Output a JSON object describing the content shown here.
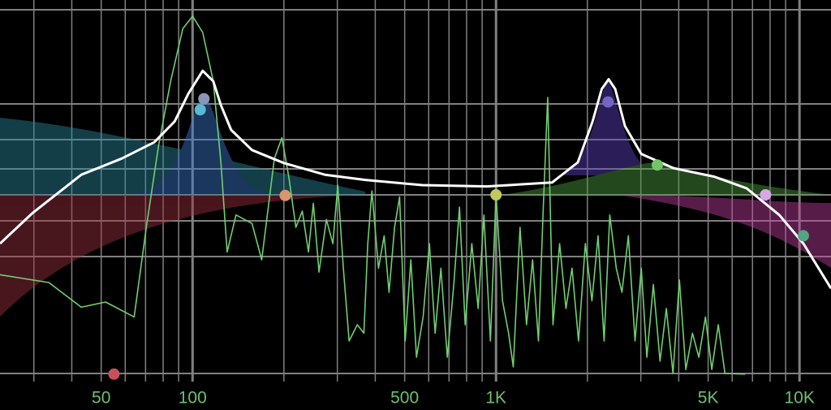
{
  "chart_data": {
    "type": "line",
    "xscale": "log",
    "background": "#000000",
    "xlim": [
      23.2,
      12700
    ],
    "ylim": [
      -30,
      30
    ],
    "xticks": [
      50,
      100,
      500,
      {
        "value": 1000,
        "label": "1K"
      },
      {
        "value": 5000,
        "label": "5K"
      },
      {
        "value": 10000,
        "label": "10K"
      }
    ],
    "xgrid": [
      30,
      40,
      50,
      60,
      70,
      80,
      90,
      100,
      200,
      300,
      400,
      500,
      600,
      700,
      800,
      900,
      1000,
      2000,
      3000,
      4000,
      5000,
      6000,
      7000,
      8000,
      9000,
      10000
    ],
    "yticks": [
      28.5,
      14,
      8.5,
      4,
      0,
      -4,
      -9.5,
      -27.5
    ],
    "grid": true,
    "grid_color": "#808080",
    "tick_label_color": "#6fbf6f",
    "series": [
      {
        "color": "#6fcf6f",
        "x": [
          23.2,
          33.6,
          43.0,
          51.7,
          64.2,
          70.4,
          77.2,
          84.7,
          92.9,
          100,
          108,
          117,
          124,
          130,
          139,
          157,
          169,
          186,
          197,
          208,
          219,
          230,
          241,
          250,
          261,
          276,
          290,
          301,
          314,
          328,
          349,
          367,
          378,
          390,
          410,
          428,
          444,
          463,
          481,
          502,
          524,
          547,
          575,
          603,
          630,
          658,
          691,
          726,
          758,
          791,
          832,
          873,
          912,
          958,
          1000,
          1050,
          1100,
          1140,
          1200,
          1260,
          1320,
          1380,
          1430,
          1480,
          1540,
          1620,
          1700,
          1780,
          1870,
          1970,
          2070,
          2170,
          2270,
          2370,
          2490,
          2600,
          2730,
          2870,
          3010,
          3140,
          3300,
          3470,
          3640,
          3830,
          4020,
          4220,
          4440,
          4660,
          4900,
          5140,
          5400,
          5680,
          6620
        ],
        "values": [
          -12.3,
          -13.5,
          -17.3,
          -16.5,
          -18.8,
          -5,
          7.5,
          17.5,
          25.6,
          27.5,
          25,
          17.5,
          5,
          -8.8,
          -3.1,
          -4.4,
          -10,
          5.6,
          8.8,
          2.5,
          -5,
          -2.5,
          -8.8,
          -1.3,
          -11.9,
          -3.8,
          -7.5,
          1.5,
          -11.3,
          -22.5,
          -20,
          -21.3,
          -7.5,
          0.6,
          -11.3,
          -6.3,
          -15,
          -5,
          -0.3,
          -22.5,
          -10,
          -25,
          -18.8,
          -7.5,
          -21.3,
          -11.3,
          -25,
          -13.8,
          -1.9,
          -20,
          -7.5,
          -17.5,
          -3.1,
          -22.5,
          0,
          -16.3,
          -21.3,
          -26.5,
          -5,
          -20,
          -10,
          -22.5,
          -2.5,
          15,
          -20,
          -7.5,
          -17.5,
          -11.3,
          -22.5,
          -7.5,
          -16.3,
          -6.3,
          -22.5,
          -3.1,
          -11.3,
          -15,
          -6.3,
          -22.5,
          -11.3,
          -25,
          -13.8,
          -25.6,
          -17.5,
          -27.5,
          -13.1,
          -26.9,
          -21.3,
          -25,
          -18.8,
          -26.9,
          -20,
          -27.5,
          -27.6
        ]
      },
      {
        "color": "#ffffff",
        "x": [
          23.2,
          29.7,
          43.0,
          58.5,
          74.8,
          87.3,
          96.9,
          108,
          117,
          124,
          134,
          157,
          200,
          273,
          371,
          571,
          934,
          1530,
          1860,
          2080,
          2230,
          2350,
          2470,
          2660,
          3010,
          3850,
          5240,
          6700,
          8580,
          10300,
          12700
        ],
        "values": [
          -7.5,
          -2.8,
          3.1,
          5.6,
          8.1,
          11.3,
          15.6,
          19.1,
          17.5,
          13.8,
          10,
          6.9,
          4.9,
          3.1,
          2.3,
          1.5,
          1.3,
          1.9,
          5,
          11.3,
          16.3,
          17.8,
          16.3,
          10.6,
          6.3,
          4.1,
          2.8,
          1,
          -3.1,
          -7.5,
          -14.4
        ]
      }
    ],
    "points": [
      {
        "x": 55.1,
        "y": -27.6,
        "color": "#c8505a"
      },
      {
        "x": 109,
        "y": 14.8,
        "color": "#8a96b8"
      },
      {
        "x": 106,
        "y": 13.1,
        "color": "#5ab8d6"
      },
      {
        "x": 202,
        "y": -0.1,
        "color": "#d8966a"
      },
      {
        "x": 1000,
        "y": 0,
        "color": "#c0c85e"
      },
      {
        "x": 2340,
        "y": 14.3,
        "color": "#7464c4"
      },
      {
        "x": 3400,
        "y": 4.6,
        "color": "#74c464"
      },
      {
        "x": 7730,
        "y": 0,
        "color": "#d8a8e6"
      },
      {
        "x": 10300,
        "y": -6.3,
        "color": "#52a482"
      }
    ]
  }
}
